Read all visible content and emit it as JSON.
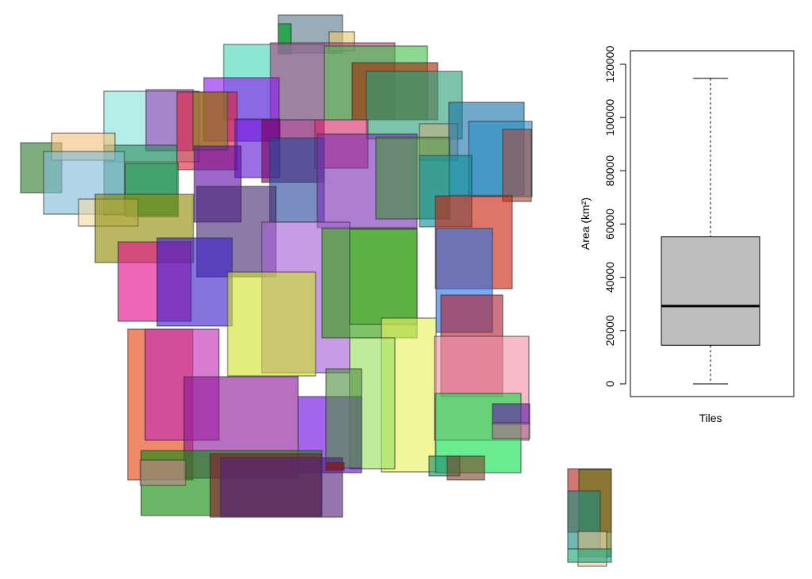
{
  "chart_data": [
    {
      "type": "map",
      "tiles": [
        {
          "color": "#5a7b8c"
        },
        {
          "color": "#2f9e8f"
        },
        {
          "color": "#e8c872"
        },
        {
          "color": "#11a821"
        },
        {
          "color": "#43d6b8"
        },
        {
          "color": "#a94484"
        },
        {
          "color": "#43c24b"
        },
        {
          "color": "#a02a0c"
        },
        {
          "color": "#2ba279"
        },
        {
          "color": "#8a1aef"
        },
        {
          "color": "#88e3dc"
        },
        {
          "color": "#9c45b7"
        },
        {
          "color": "#e2213a"
        },
        {
          "color": "#7f7f1b"
        },
        {
          "color": "#5d17d4"
        },
        {
          "color": "#7a0060"
        },
        {
          "color": "#d82c6b"
        },
        {
          "color": "#2d8c5e"
        },
        {
          "color": "#c4ae85"
        },
        {
          "color": "#1c73a8"
        },
        {
          "color": "#2c8fc6"
        },
        {
          "color": "#9e4c3e"
        },
        {
          "color": "#2e7d2f"
        },
        {
          "color": "#f3c27e"
        },
        {
          "color": "#7fbdd8"
        },
        {
          "color": "#1f9651"
        },
        {
          "color": "#5f0da8"
        },
        {
          "color": "#27479b"
        },
        {
          "color": "#7a2fb4"
        },
        {
          "color": "#3e8e3a"
        },
        {
          "color": "#f2dba7"
        },
        {
          "color": "#8e8a05"
        },
        {
          "color": "#0b8e9c"
        },
        {
          "color": "#c8210d"
        },
        {
          "color": "#452a73"
        },
        {
          "color": "#2c73e4"
        },
        {
          "color": "#e40b8b"
        },
        {
          "color": "#3a1ec6"
        },
        {
          "color": "#a45fd3"
        },
        {
          "color": "#2f9e0f"
        },
        {
          "color": "#4aa82c"
        },
        {
          "color": "#e3400f"
        },
        {
          "color": "#e7f05a"
        },
        {
          "color": "#9adf5e"
        },
        {
          "color": "#ae2233"
        },
        {
          "color": "#f190a8"
        },
        {
          "color": "#c22ab4"
        },
        {
          "color": "#8a1898"
        },
        {
          "color": "#6a07e4"
        },
        {
          "color": "#4f8f3f"
        },
        {
          "color": "#cfe22a"
        },
        {
          "color": "#10de4a"
        },
        {
          "color": "#5f1aa9"
        },
        {
          "color": "#a66b8c"
        },
        {
          "color": "#0e8a0a"
        },
        {
          "color": "#c0878e"
        },
        {
          "color": "#861a28"
        },
        {
          "color": "#53207a"
        },
        {
          "color": "#8a0f0a"
        },
        {
          "color": "#1f8a70"
        },
        {
          "color": "#7a4a2a"
        },
        {
          "color": "#b5231f"
        },
        {
          "color": "#5f750c"
        },
        {
          "color": "#1a8e80"
        },
        {
          "color": "#e8c7a0"
        },
        {
          "color": "#15a67a"
        }
      ]
    },
    {
      "type": "boxplot",
      "xlabel": "Tiles",
      "ylabel": "Area (km²)",
      "ylim": [
        0,
        120000
      ],
      "yticks": [
        "0",
        "20000",
        "40000",
        "60000",
        "80000",
        "100000",
        "120000"
      ],
      "stats": {
        "min": 0,
        "q1": 14500,
        "median": 29200,
        "q3": 55200,
        "max": 114700
      },
      "box_color": "#bebebe"
    }
  ]
}
